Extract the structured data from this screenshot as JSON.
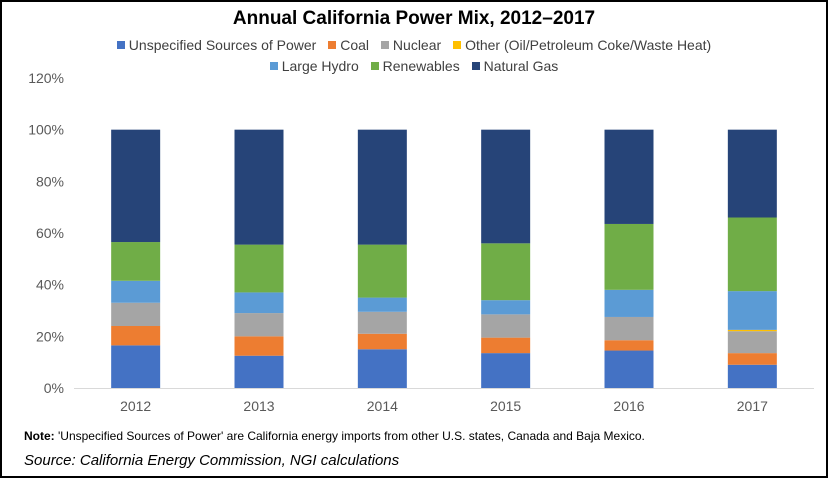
{
  "chart_data": {
    "type": "bar",
    "stacked": true,
    "title": "Annual California Power Mix, 2012–2017",
    "categories": [
      "2012",
      "2013",
      "2014",
      "2015",
      "2016",
      "2017"
    ],
    "ylim": [
      0,
      1.2
    ],
    "yticks": [
      "0%",
      "20%",
      "40%",
      "60%",
      "80%",
      "100%",
      "120%"
    ],
    "grid": false,
    "legend_position": "top",
    "series": [
      {
        "name": "Unspecified Sources of Power",
        "color": "#4472C4",
        "values": [
          0.165,
          0.125,
          0.15,
          0.135,
          0.145,
          0.09
        ]
      },
      {
        "name": "Coal",
        "color": "#ED7D31",
        "values": [
          0.075,
          0.075,
          0.06,
          0.06,
          0.04,
          0.045
        ]
      },
      {
        "name": "Nuclear",
        "color": "#A5A5A5",
        "values": [
          0.09,
          0.09,
          0.085,
          0.09,
          0.09,
          0.085
        ]
      },
      {
        "name": "Other (Oil/Petroleum Coke/Waste Heat)",
        "color": "#FFC000",
        "values": [
          0.0,
          0.0,
          0.0,
          0.0,
          0.0,
          0.005
        ]
      },
      {
        "name": "Large Hydro",
        "color": "#5B9BD5",
        "values": [
          0.085,
          0.08,
          0.055,
          0.055,
          0.105,
          0.15
        ]
      },
      {
        "name": "Renewables",
        "color": "#70AD47",
        "values": [
          0.15,
          0.185,
          0.205,
          0.22,
          0.255,
          0.285
        ]
      },
      {
        "name": "Natural Gas",
        "color": "#264478",
        "values": [
          0.435,
          0.445,
          0.445,
          0.44,
          0.365,
          0.34
        ]
      }
    ]
  },
  "legend": {
    "row1": [
      "Unspecified Sources of Power",
      "Coal",
      "Nuclear",
      "Other (Oil/Petroleum Coke/Waste Heat)"
    ],
    "row2": [
      "Large Hydro",
      "Renewables",
      "Natural Gas"
    ]
  },
  "note": {
    "label": "Note:",
    "text": " 'Unspecified Sources of Power' are California energy imports from other U.S. states, Canada and Baja Mexico."
  },
  "source": "Source: California Energy Commission, NGI calculations"
}
